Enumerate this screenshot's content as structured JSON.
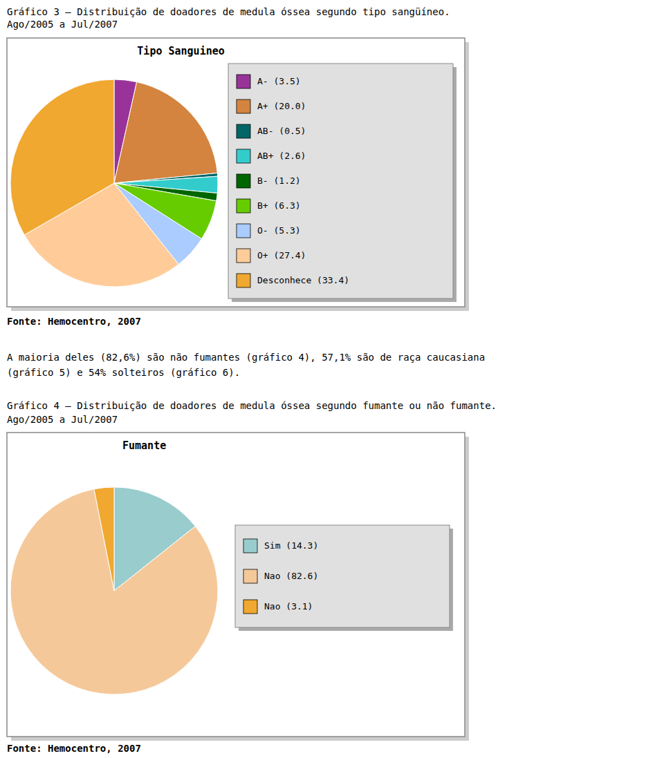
{
  "chart_data": [
    {
      "type": "pie",
      "title": "Tipo Sanguineo",
      "categories": [
        "A- (3.5)",
        "A+ (20.0)",
        "AB- (0.5)",
        "AB+ (2.6)",
        "B- (1.2)",
        "B+ (6.3)",
        "O- (5.3)",
        "O+ (27.4)",
        "Desconhece (33.4)"
      ],
      "values": [
        3.5,
        20.0,
        0.5,
        2.6,
        1.2,
        6.3,
        5.3,
        27.4,
        33.4
      ],
      "colors": [
        "#993399",
        "#d4843e",
        "#006666",
        "#33cccc",
        "#006600",
        "#66cc00",
        "#aaccff",
        "#ffcc99",
        "#f0a830"
      ],
      "legend": "right",
      "annotations": [
        "Gráfico 3 – Distribuição de doadores de medula óssea segundo tipo sangüíneo.",
        "Ago/2005 a Jul/2007",
        "Fonte: Hemocentro, 2007",
        "A maioria deles (82,6%) são não fumantes (gráfico 4), 57,1% são de raça caucasiana",
        "(gráfico 5) e 54% solteiros (gráfico 6)."
      ]
    },
    {
      "type": "pie",
      "title": "Fumante",
      "categories": [
        "Sim (14.3)",
        "Nao (82.6)",
        "Nao (3.1)"
      ],
      "values": [
        14.3,
        82.6,
        3.1
      ],
      "colors": [
        "#99cccc",
        "#f5c89a",
        "#f0a830"
      ],
      "legend": "right",
      "annotations": [
        "Gráfico 4 – Distribuição de doadores de medula óssea segundo fumante ou não fumante.",
        "Ago/2005 a Jul/2007",
        "Fonte: Hemocentro, 2007"
      ]
    }
  ]
}
